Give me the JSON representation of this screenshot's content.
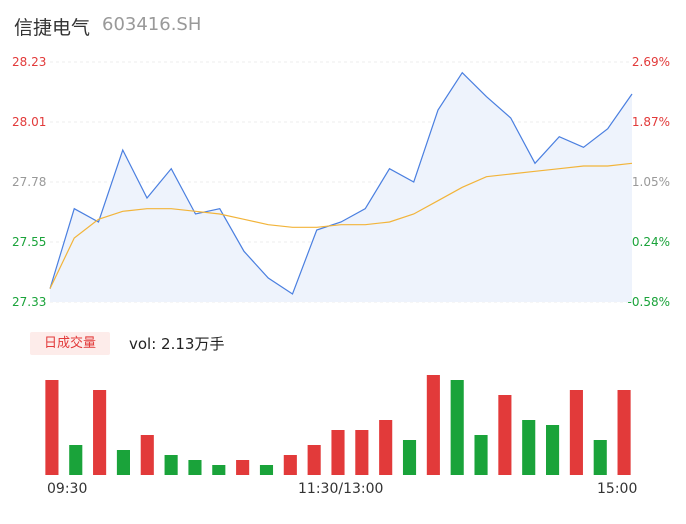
{
  "header": {
    "name": "信捷电气",
    "code": "603416.SH"
  },
  "colors": {
    "price_line": "#4a7fe0",
    "price_fill": "#eef3fc",
    "avg_line": "#f2b43a",
    "up": "#e23a3a",
    "down": "#1aa33a",
    "neutral": "#999999"
  },
  "price_axis": [
    "28.23",
    "28.01",
    "27.78",
    "27.55",
    "27.33"
  ],
  "pct_axis": [
    "2.69%",
    "1.87%",
    "1.05%",
    "0.24%",
    "-0.58%"
  ],
  "volume_panel": {
    "badge": "日成交量",
    "readout": "vol: 2.13万手"
  },
  "time_axis": [
    "09:30",
    "11:30/13:00",
    "15:00"
  ],
  "chart_data": [
    {
      "type": "line",
      "title": "",
      "xlabel": "",
      "ylabel": "",
      "ylim": [
        27.33,
        28.23
      ],
      "x": [
        "09:30",
        "09:40",
        "09:50",
        "10:00",
        "10:10",
        "10:20",
        "10:30",
        "10:40",
        "10:50",
        "11:00",
        "11:10",
        "11:20",
        "11:30/13:00",
        "13:10",
        "13:20",
        "13:30",
        "13:40",
        "13:50",
        "14:00",
        "14:10",
        "14:20",
        "14:30",
        "14:40",
        "14:50",
        "15:00"
      ],
      "series": [
        {
          "values": [
            27.38,
            27.68,
            27.63,
            27.9,
            27.72,
            27.83,
            27.66,
            27.68,
            27.52,
            27.42,
            27.36,
            27.6,
            27.63,
            27.68,
            27.83,
            27.78,
            28.05,
            28.19,
            28.1,
            28.02,
            27.85,
            27.95,
            27.91,
            27.98,
            28.11
          ]
        },
        {
          "values": [
            27.38,
            27.57,
            27.64,
            27.67,
            27.68,
            27.68,
            27.67,
            27.66,
            27.64,
            27.62,
            27.61,
            27.61,
            27.62,
            27.62,
            27.63,
            27.66,
            27.71,
            27.76,
            27.8,
            27.81,
            27.82,
            27.83,
            27.84,
            27.84,
            27.85
          ]
        }
      ],
      "pct_ylim": [
        -0.58,
        2.69
      ]
    },
    {
      "type": "bar",
      "title": "",
      "xlabel": "",
      "ylabel": "",
      "ylim": [
        0,
        100
      ],
      "categories": [
        "09:30",
        "09:40",
        "09:50",
        "10:00",
        "10:10",
        "10:20",
        "10:30",
        "10:40",
        "10:50",
        "11:00",
        "11:10",
        "11:20",
        "11:30/13:00",
        "13:10",
        "13:20",
        "13:30",
        "13:40",
        "13:50",
        "14:00",
        "14:10",
        "14:20",
        "14:30",
        "14:40",
        "14:50",
        "15:00"
      ],
      "series": [
        {
          "values": [
            95,
            30,
            85,
            25,
            40,
            20,
            15,
            10,
            15,
            10,
            20,
            30,
            45,
            45,
            55,
            35,
            100,
            95,
            40,
            80,
            55,
            50,
            85,
            35,
            85
          ]
        }
      ]
    }
  ]
}
